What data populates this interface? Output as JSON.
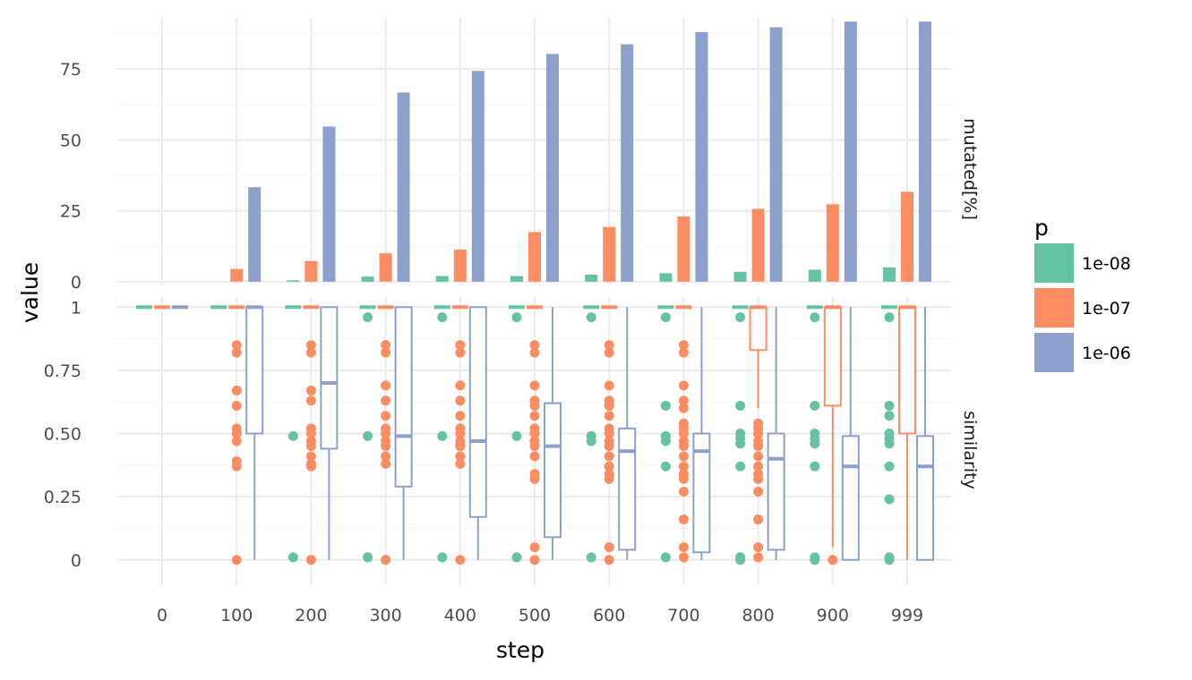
{
  "chart_data": {
    "type": "faceted bar + boxplot",
    "xlabel": "step",
    "ylabel": "value",
    "x_categories": [
      "0",
      "100",
      "200",
      "300",
      "400",
      "500",
      "600",
      "700",
      "800",
      "900",
      "999"
    ],
    "legend": {
      "title": "p",
      "placement": "right",
      "entries": [
        {
          "label": "1e-08",
          "color": "#66c2a5"
        },
        {
          "label": "1e-07",
          "color": "#fc8d62"
        },
        {
          "label": "1e-06",
          "color": "#8da0cb"
        }
      ]
    },
    "panels": [
      {
        "strip": "mutated[%]",
        "type": "bar",
        "ylim": [
          -1,
          93
        ],
        "yticks": [
          0,
          25,
          50,
          75
        ],
        "ytick_labels": [
          "0",
          "25",
          "50",
          "75"
        ],
        "series": [
          {
            "name": "1e-08",
            "values": [
              0,
              0,
              0.5,
              1.8,
              2,
              2,
              2.5,
              3,
              3.5,
              4.2,
              5
            ]
          },
          {
            "name": "1e-07",
            "values": [
              0,
              4.5,
              7.3,
              10,
              11.3,
              17.5,
              19.3,
              23,
              25.7,
              27.3,
              31.7
            ]
          },
          {
            "name": "1e-06",
            "values": [
              0,
              33.3,
              54.7,
              66.7,
              74.3,
              80.3,
              83.7,
              88,
              89.7,
              91.7,
              91.7
            ]
          }
        ]
      },
      {
        "strip": "similarity",
        "type": "boxplot",
        "ylim": [
          -0.1,
          1.04
        ],
        "yticks": [
          0,
          0.25,
          0.5,
          0.75,
          1
        ],
        "ytick_labels": [
          "0",
          "0.25",
          "0.50",
          "0.75",
          "1"
        ],
        "series": [
          {
            "name": "1e-08",
            "boxes": [
              {
                "q1": 1,
                "median": 1,
                "q3": 1,
                "lower": 1,
                "upper": 1,
                "outliers": []
              },
              {
                "q1": 1,
                "median": 1,
                "q3": 1,
                "lower": 1,
                "upper": 1,
                "outliers": []
              },
              {
                "q1": 1,
                "median": 1,
                "q3": 1,
                "lower": 1,
                "upper": 1,
                "outliers": [
                  0.49,
                  0.01
                ]
              },
              {
                "q1": 1,
                "median": 1,
                "q3": 1,
                "lower": 1,
                "upper": 1,
                "outliers": [
                  0.96,
                  0.49,
                  0.01
                ]
              },
              {
                "q1": 1,
                "median": 1,
                "q3": 1,
                "lower": 1,
                "upper": 1,
                "outliers": [
                  0.96,
                  0.49,
                  0.01
                ]
              },
              {
                "q1": 1,
                "median": 1,
                "q3": 1,
                "lower": 1,
                "upper": 1,
                "outliers": [
                  0.96,
                  0.49,
                  0.01
                ]
              },
              {
                "q1": 1,
                "median": 1,
                "q3": 1,
                "lower": 1,
                "upper": 1,
                "outliers": [
                  0.96,
                  0.49,
                  0.47,
                  0.01
                ]
              },
              {
                "q1": 1,
                "median": 1,
                "q3": 1,
                "lower": 1,
                "upper": 1,
                "outliers": [
                  0.96,
                  0.61,
                  0.49,
                  0.47,
                  0.37,
                  0.01
                ]
              },
              {
                "q1": 1,
                "median": 1,
                "q3": 1,
                "lower": 1,
                "upper": 1,
                "outliers": [
                  0.96,
                  0.61,
                  0.5,
                  0.48,
                  0.46,
                  0.37,
                  0.01,
                  0
                ]
              },
              {
                "q1": 1,
                "median": 1,
                "q3": 1,
                "lower": 1,
                "upper": 1,
                "outliers": [
                  0.96,
                  0.61,
                  0.5,
                  0.48,
                  0.46,
                  0.37,
                  0.01,
                  0
                ]
              },
              {
                "q1": 1,
                "median": 1,
                "q3": 1,
                "lower": 1,
                "upper": 1,
                "outliers": [
                  0.96,
                  0.61,
                  0.57,
                  0.5,
                  0.48,
                  0.46,
                  0.37,
                  0.24,
                  0.01,
                  0
                ]
              }
            ]
          },
          {
            "name": "1e-07",
            "boxes": [
              {
                "q1": 1,
                "median": 1,
                "q3": 1,
                "lower": 1,
                "upper": 1,
                "outliers": []
              },
              {
                "q1": 1,
                "median": 1,
                "q3": 1,
                "lower": 1,
                "upper": 1,
                "outliers": [
                  0.85,
                  0.82,
                  0.67,
                  0.61,
                  0.52,
                  0.5,
                  0.47,
                  0.39,
                  0.37,
                  0
                ]
              },
              {
                "q1": 1,
                "median": 1,
                "q3": 1,
                "lower": 1,
                "upper": 1,
                "outliers": [
                  0.85,
                  0.82,
                  0.67,
                  0.63,
                  0.52,
                  0.5,
                  0.47,
                  0.45,
                  0.41,
                  0.38,
                  0.37,
                  0
                ]
              },
              {
                "q1": 1,
                "median": 1,
                "q3": 1,
                "lower": 1,
                "upper": 1,
                "outliers": [
                  0.85,
                  0.82,
                  0.69,
                  0.63,
                  0.57,
                  0.52,
                  0.5,
                  0.47,
                  0.45,
                  0.41,
                  0.38,
                  0
                ]
              },
              {
                "q1": 1,
                "median": 1,
                "q3": 1,
                "lower": 1,
                "upper": 1,
                "outliers": [
                  0.85,
                  0.82,
                  0.69,
                  0.63,
                  0.57,
                  0.52,
                  0.5,
                  0.47,
                  0.45,
                  0.41,
                  0.38,
                  0
                ]
              },
              {
                "q1": 1,
                "median": 1,
                "q3": 1,
                "lower": 1,
                "upper": 1,
                "outliers": [
                  0.85,
                  0.82,
                  0.69,
                  0.63,
                  0.61,
                  0.57,
                  0.52,
                  0.5,
                  0.47,
                  0.45,
                  0.41,
                  0.34,
                  0.32,
                  0.05,
                  0
                ]
              },
              {
                "q1": 1,
                "median": 1,
                "q3": 1,
                "lower": 1,
                "upper": 1,
                "outliers": [
                  0.85,
                  0.82,
                  0.69,
                  0.63,
                  0.61,
                  0.57,
                  0.52,
                  0.5,
                  0.47,
                  0.45,
                  0.41,
                  0.37,
                  0.34,
                  0.32,
                  0.05,
                  0
                ]
              },
              {
                "q1": 1,
                "median": 1,
                "q3": 1,
                "lower": 1,
                "upper": 1,
                "outliers": [
                  0.85,
                  0.82,
                  0.69,
                  0.63,
                  0.6,
                  0.54,
                  0.52,
                  0.5,
                  0.47,
                  0.45,
                  0.41,
                  0.37,
                  0.34,
                  0.32,
                  0.27,
                  0.16,
                  0.05,
                  0.01
                ]
              },
              {
                "q1": 0.83,
                "median": 1,
                "q3": 1,
                "lower": 0.6,
                "upper": 1,
                "outliers": [
                  0.54,
                  0.52,
                  0.5,
                  0.47,
                  0.45,
                  0.41,
                  0.37,
                  0.34,
                  0.32,
                  0.27,
                  0.16,
                  0.05,
                  0.01
                ]
              },
              {
                "q1": 0.61,
                "median": 1,
                "q3": 1,
                "lower": 0.05,
                "upper": 1,
                "outliers": [
                  0
                ]
              },
              {
                "q1": 0.5,
                "median": 1,
                "q3": 1,
                "lower": 0,
                "upper": 1,
                "outliers": []
              }
            ]
          },
          {
            "name": "1e-06",
            "boxes": [
              {
                "q1": 1,
                "median": 1,
                "q3": 1,
                "lower": 1,
                "upper": 1,
                "outliers": []
              },
              {
                "q1": 0.5,
                "median": 1,
                "q3": 1,
                "lower": 0,
                "upper": 1,
                "outliers": []
              },
              {
                "q1": 0.44,
                "median": 0.7,
                "q3": 1,
                "lower": 0,
                "upper": 1,
                "outliers": []
              },
              {
                "q1": 0.29,
                "median": 0.49,
                "q3": 1,
                "lower": 0,
                "upper": 1,
                "outliers": []
              },
              {
                "q1": 0.17,
                "median": 0.47,
                "q3": 1,
                "lower": 0,
                "upper": 1,
                "outliers": []
              },
              {
                "q1": 0.09,
                "median": 0.45,
                "q3": 0.62,
                "lower": 0,
                "upper": 1,
                "outliers": []
              },
              {
                "q1": 0.04,
                "median": 0.43,
                "q3": 0.52,
                "lower": 0,
                "upper": 1,
                "outliers": []
              },
              {
                "q1": 0.03,
                "median": 0.43,
                "q3": 0.5,
                "lower": 0,
                "upper": 1,
                "outliers": []
              },
              {
                "q1": 0.04,
                "median": 0.4,
                "q3": 0.5,
                "lower": 0,
                "upper": 1,
                "outliers": []
              },
              {
                "q1": 0,
                "median": 0.37,
                "q3": 0.49,
                "lower": 0,
                "upper": 1,
                "outliers": []
              },
              {
                "q1": 0,
                "median": 0.37,
                "q3": 0.49,
                "lower": 0,
                "upper": 1,
                "outliers": []
              }
            ]
          }
        ]
      }
    ]
  }
}
